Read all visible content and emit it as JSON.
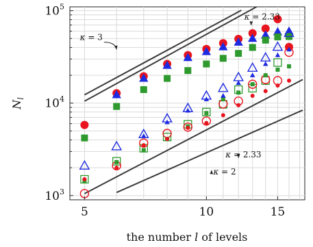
{
  "chart_data": {
    "type": "scatter",
    "xlabel": "the number l of levels",
    "ylabel": "N_l",
    "x_scale": "log",
    "y_scale": "log",
    "xlim": [
      4.6,
      17.5
    ],
    "ylim": [
      900,
      110000
    ],
    "grid": true,
    "x_ticks": [
      {
        "value": 5,
        "label": "5"
      },
      {
        "value": 10,
        "label": "10"
      },
      {
        "value": 15,
        "label": "15"
      }
    ],
    "y_ticks": [
      {
        "value": 1000,
        "base": "10",
        "exp": "3"
      },
      {
        "value": 10000,
        "base": "10",
        "exp": "4"
      },
      {
        "value": 100000,
        "base": "10",
        "exp": "5"
      }
    ],
    "series": [
      {
        "marker": "filled-circle-large",
        "color": "#e8141e",
        "points": [
          [
            5,
            5800
          ],
          [
            6,
            12800
          ],
          [
            7,
            19500
          ],
          [
            8,
            26500
          ],
          [
            9,
            33000
          ],
          [
            10,
            38500
          ],
          [
            11,
            44500
          ],
          [
            12,
            49500
          ],
          [
            13,
            57000
          ],
          [
            14,
            64000
          ],
          [
            15,
            81000
          ],
          [
            16,
            40500
          ]
        ]
      },
      {
        "marker": "filled-triangle-large",
        "color": "#1e2adf",
        "points": [
          [
            6,
            12300
          ],
          [
            7,
            18500
          ],
          [
            8,
            25500
          ],
          [
            9,
            31000
          ],
          [
            10,
            36000
          ],
          [
            11,
            40500
          ],
          [
            12,
            45500
          ],
          [
            13,
            50000
          ],
          [
            14,
            54500
          ],
          [
            15,
            59000
          ],
          [
            16,
            60000
          ]
        ]
      },
      {
        "marker": "filled-square-large",
        "color": "#2e9a2e",
        "points": [
          [
            5,
            4200
          ],
          [
            6,
            9200
          ],
          [
            7,
            14000
          ],
          [
            8,
            18500
          ],
          [
            9,
            22500
          ],
          [
            10,
            26500
          ],
          [
            11,
            30500
          ],
          [
            12,
            34500
          ],
          [
            13,
            40000
          ],
          [
            14,
            48000
          ],
          [
            15,
            52000
          ],
          [
            16,
            52500
          ]
        ]
      },
      {
        "marker": "open-triangle",
        "color": "#1e2adf",
        "points": [
          [
            5,
            2100
          ],
          [
            6,
            3400
          ],
          [
            7,
            4600
          ],
          [
            8,
            6800
          ],
          [
            9,
            8800
          ],
          [
            10,
            12000
          ],
          [
            11,
            14500
          ],
          [
            12,
            19000
          ],
          [
            13,
            24000
          ],
          [
            14,
            31000
          ],
          [
            15,
            40500
          ],
          [
            16,
            57000
          ]
        ]
      },
      {
        "marker": "open-square",
        "color": "#2e9a2e",
        "points": [
          [
            5,
            1500
          ],
          [
            6,
            2350
          ],
          [
            7,
            3250
          ],
          [
            8,
            4300
          ],
          [
            9,
            5900
          ],
          [
            10,
            8000
          ],
          [
            11,
            9700
          ],
          [
            12,
            14000
          ],
          [
            13,
            14500
          ],
          [
            14,
            17500
          ],
          [
            15,
            27500
          ]
        ]
      },
      {
        "marker": "open-circle",
        "color": "#e8141e",
        "points": [
          [
            5,
            1050
          ],
          [
            6,
            2100
          ],
          [
            7,
            3700
          ],
          [
            8,
            4700
          ],
          [
            9,
            5500
          ],
          [
            10,
            6400
          ],
          [
            11,
            9800
          ],
          [
            12,
            10500
          ],
          [
            13,
            16000
          ],
          [
            14,
            18000
          ],
          [
            15,
            17500
          ],
          [
            16,
            35500
          ]
        ]
      },
      {
        "marker": "small-square",
        "color": "#2e9a2e",
        "points": [
          [
            5,
            1450
          ],
          [
            6,
            2300
          ],
          [
            7,
            3100
          ],
          [
            8,
            4100
          ],
          [
            9,
            5600
          ],
          [
            10,
            7800
          ],
          [
            11,
            11000
          ],
          [
            12,
            13000
          ],
          [
            13,
            16000
          ],
          [
            14,
            20000
          ],
          [
            15,
            23000
          ],
          [
            16,
            25000
          ]
        ]
      },
      {
        "marker": "small-triangle",
        "color": "#1e2adf",
        "points": [
          [
            7,
            4400
          ],
          [
            8,
            6200
          ],
          [
            9,
            8300
          ],
          [
            10,
            11000
          ],
          [
            11,
            12000
          ],
          [
            12,
            16500
          ],
          [
            13,
            20000
          ],
          [
            14,
            26500
          ],
          [
            15,
            33000
          ],
          [
            16,
            38000
          ]
        ]
      },
      {
        "marker": "small-dot",
        "color": "#e8141e",
        "points": [
          [
            5,
            1500
          ],
          [
            6,
            2000
          ],
          [
            7,
            3500
          ],
          [
            8,
            4100
          ],
          [
            9,
            5400
          ],
          [
            10,
            6100
          ],
          [
            11,
            7400
          ],
          [
            12,
            9500
          ],
          [
            13,
            12000
          ],
          [
            14,
            13500
          ],
          [
            15,
            15500
          ],
          [
            16,
            17500
          ]
        ]
      }
    ],
    "reference_lines": [
      {
        "label": "κ = 2.33",
        "points": [
          [
            5,
            12300
          ],
          [
            12.2,
            101000
          ]
        ]
      },
      {
        "label": "κ = 3",
        "points": [
          [
            5,
            10500
          ],
          [
            13.3,
            110000
          ]
        ]
      },
      {
        "label": "κ = 2.33",
        "points": [
          [
            5,
            1050
          ],
          [
            17.3,
            18000
          ]
        ]
      },
      {
        "label": "κ = 2",
        "points": [
          [
            6,
            1080
          ],
          [
            17.3,
            8400
          ]
        ]
      }
    ],
    "annotations": [
      {
        "text": "κ = 2.33",
        "at": [
          12.4,
          80000
        ],
        "arrow_to": [
          12.9,
          69500
        ]
      },
      {
        "text": "κ = 3",
        "at": [
          4.87,
          48000
        ],
        "arrow_to": [
          6.0,
          38000
        ]
      },
      {
        "text": "κ = 2.33",
        "at": [
          11.15,
          2580
        ],
        "arrow_to": [
          12.0,
          2550
        ]
      },
      {
        "text": "κ = 2",
        "at": [
          10.4,
          1690
        ],
        "arrow_to": [
          10.3,
          1880
        ]
      }
    ]
  }
}
